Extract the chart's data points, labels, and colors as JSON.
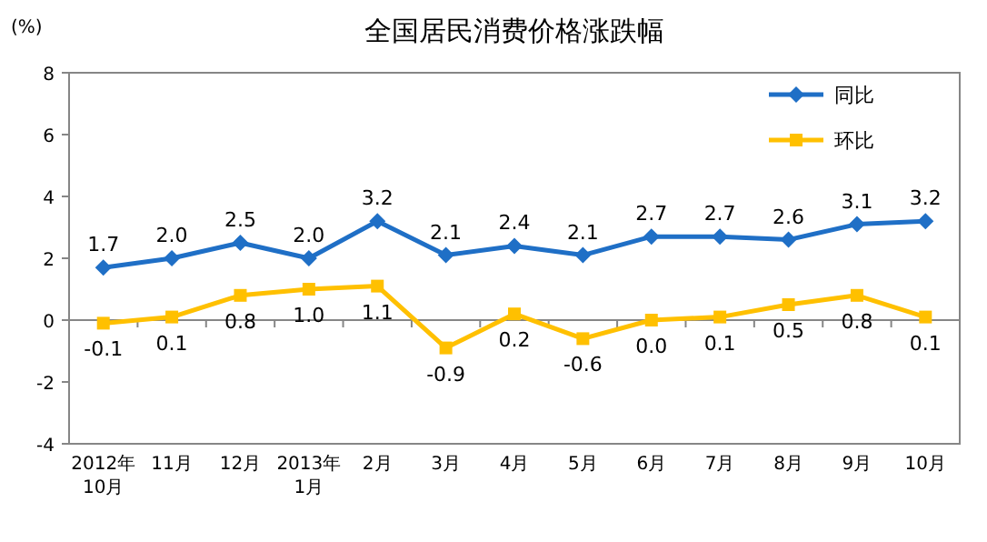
{
  "chart_data": {
    "type": "line",
    "title": "全国居民消费价格涨跌幅",
    "ylabel": "(%)",
    "categories": [
      "2012年\n10月",
      "11月",
      "12月",
      "2013年\n1月",
      "2月",
      "3月",
      "4月",
      "5月",
      "6月",
      "7月",
      "8月",
      "9月",
      "10月"
    ],
    "series": [
      {
        "name": "同比",
        "color": "#1f6fc6",
        "marker": "diamond",
        "values": [
          1.7,
          2.0,
          2.5,
          2.0,
          3.2,
          2.1,
          2.4,
          2.1,
          2.7,
          2.7,
          2.6,
          3.1,
          3.2
        ],
        "value_labels": [
          "1.7",
          "2.0",
          "2.5",
          "2.0",
          "3.2",
          "2.1",
          "2.4",
          "2.1",
          "2.7",
          "2.7",
          "2.6",
          "3.1",
          "3.2"
        ]
      },
      {
        "name": "环比",
        "color": "#ffc000",
        "marker": "square",
        "values": [
          -0.1,
          0.1,
          0.8,
          1.0,
          1.1,
          -0.9,
          0.2,
          -0.6,
          0.0,
          0.1,
          0.5,
          0.8,
          0.1
        ],
        "value_labels": [
          "-0.1",
          "0.1",
          "0.8",
          "1.0",
          "1.1",
          "-0.9",
          "0.2",
          "-0.6",
          "0.0",
          "0.1",
          "0.5",
          "0.8",
          "0.1"
        ]
      }
    ],
    "ylim": [
      -4,
      8
    ],
    "yticks": [
      -4,
      -2,
      0,
      2,
      4,
      6,
      8
    ],
    "legend": "top right"
  }
}
